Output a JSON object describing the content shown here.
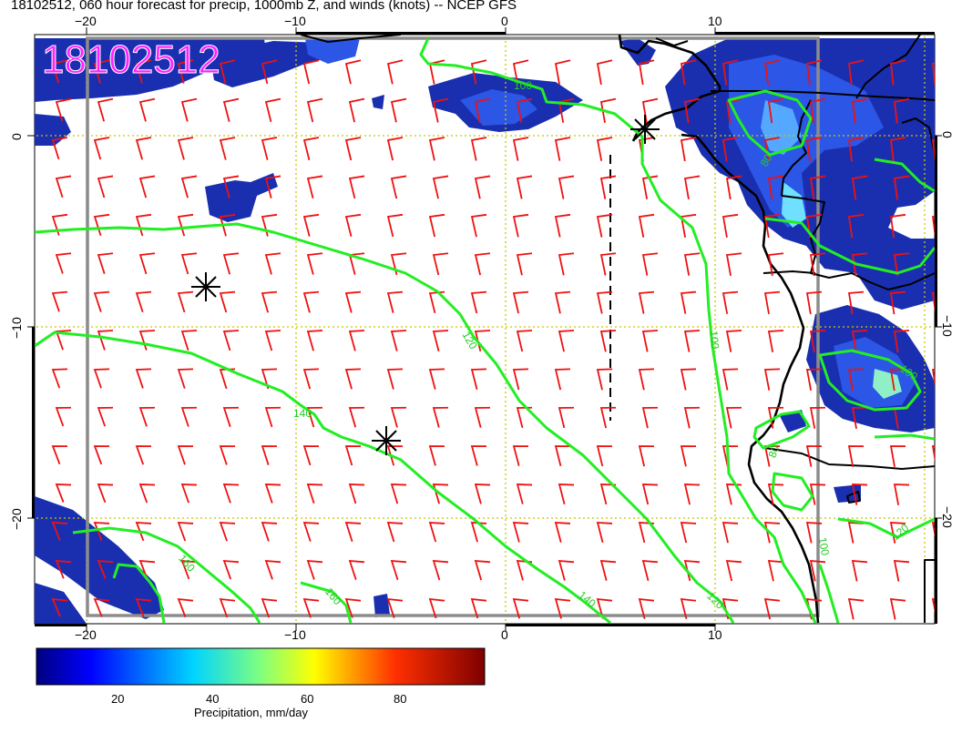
{
  "title": "18102512, 060 hour forecast for precip, 1000mb Z, and winds (knots) -- NCEP GFS",
  "stamp": "18102512",
  "colors": {
    "contour": "#22ee22",
    "wind": "#ee1111",
    "coast": "#000000",
    "grid": "#c8c800",
    "frame": "#8c8c8c",
    "stamp": "#ff22ff"
  },
  "axes": {
    "top_lon_labels": [
      "−20",
      "−10",
      "0",
      "10"
    ],
    "bottom_lon_labels": [
      "−20",
      "−10",
      "0",
      "10"
    ],
    "left_lat_labels": [
      "0",
      "−10",
      "−20"
    ],
    "right_lat_labels": [
      "0",
      "−10",
      "−20"
    ]
  },
  "contours": {
    "labels": [
      "100",
      "120",
      "140",
      "160",
      "160",
      "140",
      "120",
      "100",
      "80",
      "80",
      "100",
      "120",
      "100"
    ]
  },
  "colorbar": {
    "ticks": [
      "20",
      "40",
      "60",
      "80"
    ],
    "label": "Precipitation, mm/day",
    "min": 2,
    "max": 96
  },
  "markers": [
    "star-1",
    "star-2",
    "star-3"
  ]
}
